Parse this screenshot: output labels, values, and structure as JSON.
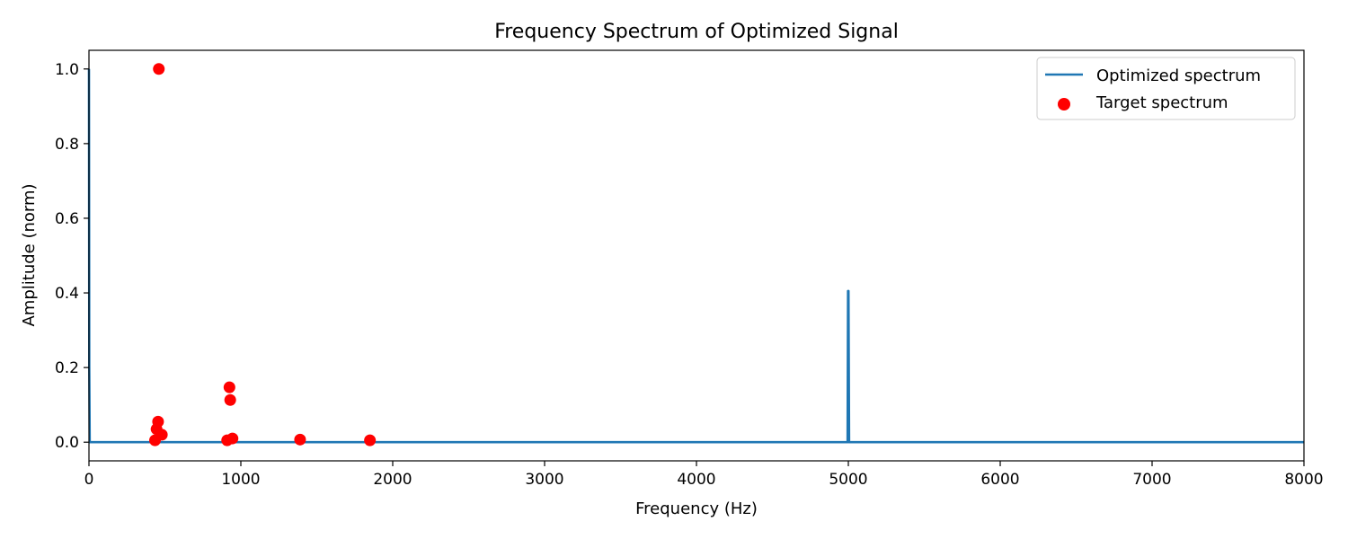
{
  "chart_data": {
    "type": "line",
    "title": "Frequency Spectrum of Optimized Signal",
    "xlabel": "Frequency (Hz)",
    "ylabel": "Amplitude (norm)",
    "xlim": [
      0,
      8000
    ],
    "ylim": [
      -0.05,
      1.05
    ],
    "xticks": [
      "0",
      "1000",
      "2000",
      "3000",
      "4000",
      "5000",
      "6000",
      "7000",
      "8000"
    ],
    "yticks": [
      "0.0",
      "0.2",
      "0.4",
      "0.6",
      "0.8",
      "1.0"
    ],
    "grid": false,
    "legend": "top-right",
    "series": [
      {
        "name": "Optimized spectrum",
        "kind": "line",
        "color": "#1f77b4",
        "x": [
          0,
          2,
          5,
          8,
          10,
          4990,
          4995,
          4998,
          5001,
          5005,
          8000
        ],
        "y": [
          1.0,
          0.2,
          0.0,
          0.0,
          0.0,
          0.0,
          0.0,
          0.405,
          0.405,
          0.0,
          0.0
        ]
      },
      {
        "name": "Target spectrum",
        "kind": "scatter",
        "color": "#ff0000",
        "x": [
          460,
          455,
          445,
          435,
          480,
          925,
          930,
          910,
          945,
          1390,
          1850
        ],
        "y": [
          1.0,
          0.055,
          0.035,
          0.005,
          0.02,
          0.147,
          0.113,
          0.005,
          0.01,
          0.007,
          0.005
        ]
      }
    ]
  }
}
